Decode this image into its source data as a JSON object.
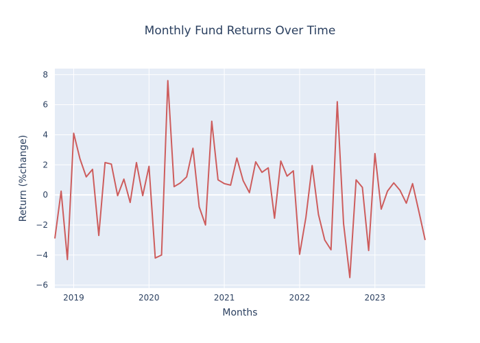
{
  "chart_data": {
    "type": "line",
    "title": "Monthly Fund Returns Over Time",
    "xlabel": "Months",
    "ylabel": "Return (%change)",
    "x_start": "2018-10",
    "x_end": "2023-09",
    "xlim": [
      "2018-10",
      "2023-09"
    ],
    "ylim": [
      -6.2,
      8.4
    ],
    "x_ticks": [
      "2019",
      "2020",
      "2021",
      "2022",
      "2023"
    ],
    "y_ticks": [
      -6,
      -4,
      -2,
      0,
      2,
      4,
      6,
      8
    ],
    "grid": true,
    "line_color": "#cd5c5c",
    "plot_background": "#e5ecf6",
    "series": [
      {
        "x": [
          "2018-10",
          "2018-11",
          "2018-12",
          "2019-01",
          "2019-02",
          "2019-03",
          "2019-04",
          "2019-05",
          "2019-06",
          "2019-07",
          "2019-08",
          "2019-09",
          "2019-10",
          "2019-11",
          "2019-12",
          "2020-01",
          "2020-02",
          "2020-03",
          "2020-04",
          "2020-05",
          "2020-06",
          "2020-07",
          "2020-08",
          "2020-09",
          "2020-10",
          "2020-11",
          "2020-12",
          "2021-01",
          "2021-02",
          "2021-03",
          "2021-04",
          "2021-05",
          "2021-06",
          "2021-07",
          "2021-08",
          "2021-09",
          "2021-10",
          "2021-11",
          "2021-12",
          "2022-01",
          "2022-02",
          "2022-03",
          "2022-04",
          "2022-05",
          "2022-06",
          "2022-07",
          "2022-08",
          "2022-09",
          "2022-10",
          "2022-11",
          "2022-12",
          "2023-01",
          "2023-02",
          "2023-03",
          "2023-04",
          "2023-05",
          "2023-06",
          "2023-07",
          "2023-08",
          "2023-09"
        ],
        "values": [
          -2.9,
          0.25,
          -4.3,
          4.1,
          2.4,
          1.2,
          1.7,
          -2.7,
          2.15,
          2.05,
          -0.05,
          1.05,
          -0.5,
          2.15,
          -0.05,
          1.9,
          -4.2,
          -4.0,
          7.6,
          0.55,
          0.8,
          1.2,
          3.1,
          -0.8,
          -2.0,
          4.9,
          1.0,
          0.75,
          0.65,
          2.45,
          0.95,
          0.15,
          2.2,
          1.5,
          1.8,
          -1.55,
          2.25,
          1.25,
          1.6,
          -3.95,
          -1.5,
          1.95,
          -1.3,
          -3.0,
          -3.65,
          6.2,
          -1.9,
          -5.5,
          1.0,
          0.5,
          -3.7,
          2.75,
          -0.95,
          0.25,
          0.8,
          0.3,
          -0.55,
          0.75,
          -1.1,
          -3.0
        ]
      }
    ]
  }
}
